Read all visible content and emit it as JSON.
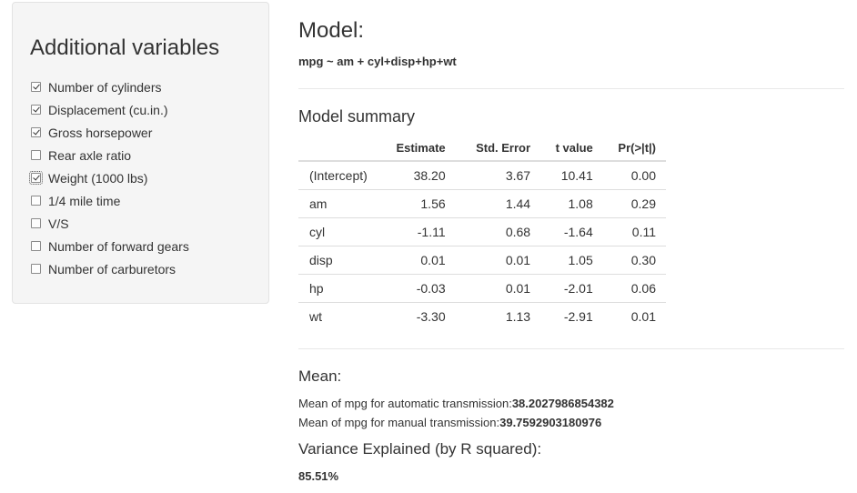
{
  "sidebar": {
    "title": "Additional variables",
    "options": [
      {
        "label": "Number of cylinders",
        "checked": true
      },
      {
        "label": "Displacement (cu.in.)",
        "checked": true
      },
      {
        "label": "Gross horsepower",
        "checked": true
      },
      {
        "label": "Rear axle ratio",
        "checked": false
      },
      {
        "label": "Weight (1000 lbs)",
        "checked": true,
        "focused": true
      },
      {
        "label": "1/4 mile time",
        "checked": false
      },
      {
        "label": "V/S",
        "checked": false
      },
      {
        "label": "Number of forward gears",
        "checked": false
      },
      {
        "label": "Number of carburetors",
        "checked": false
      }
    ]
  },
  "model": {
    "heading": "Model:",
    "formula": "mpg ~ am + cyl+disp+hp+wt"
  },
  "summary": {
    "heading": "Model summary",
    "columns": [
      "",
      "Estimate",
      "Std. Error",
      "t value",
      "Pr(>|t|)"
    ],
    "rows": [
      [
        "(Intercept)",
        "38.20",
        "3.67",
        "10.41",
        "0.00"
      ],
      [
        "am",
        "1.56",
        "1.44",
        "1.08",
        "0.29"
      ],
      [
        "cyl",
        "-1.11",
        "0.68",
        "-1.64",
        "0.11"
      ],
      [
        "disp",
        "0.01",
        "0.01",
        "1.05",
        "0.30"
      ],
      [
        "hp",
        "-0.03",
        "0.01",
        "-2.01",
        "0.06"
      ],
      [
        "wt",
        "-3.30",
        "1.13",
        "-2.91",
        "0.01"
      ]
    ]
  },
  "mean": {
    "heading": "Mean:",
    "auto_label": "Mean of mpg for automatic transmission:",
    "auto_value": "38.2027986854382",
    "manual_label": "Mean of mpg for manual transmission:",
    "manual_value": "39.7592903180976"
  },
  "variance": {
    "heading": "Variance Explained (by R squared):",
    "value": "85.51%"
  }
}
